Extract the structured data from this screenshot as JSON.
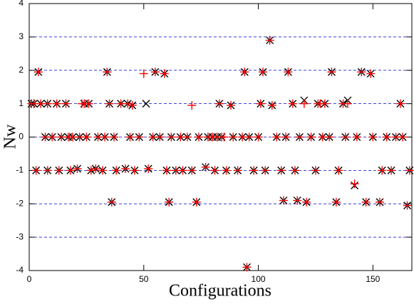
{
  "chart_data": {
    "type": "scatter",
    "xlabel": "Configurations",
    "ylabel": "Nw",
    "xlim": [
      0,
      167
    ],
    "ylim": [
      -4,
      4
    ],
    "xticks": [
      0,
      50,
      100,
      150
    ],
    "yticks": [
      -4,
      -3,
      -2,
      -1,
      0,
      1,
      2,
      3,
      4
    ],
    "grid": true,
    "grid_color": "#0000cc",
    "series": [
      {
        "color": "#000000",
        "marker": "x",
        "x": [
          1,
          2,
          3,
          4,
          5,
          7,
          8,
          8,
          10,
          12,
          13,
          14,
          16,
          17,
          18,
          19,
          21,
          22,
          24,
          25,
          26,
          27,
          29,
          30,
          32,
          33,
          34,
          35,
          36,
          37,
          38,
          40,
          42,
          43,
          44,
          45,
          46,
          48,
          51,
          52,
          54,
          55,
          57,
          59,
          60,
          61,
          62,
          64,
          66,
          67,
          69,
          71,
          73,
          74,
          77,
          78,
          80,
          81,
          82,
          83,
          84,
          86,
          88,
          89,
          91,
          93,
          94,
          95,
          96,
          98,
          100,
          101,
          102,
          103,
          105,
          106,
          108,
          110,
          111,
          112,
          113,
          115,
          116,
          117,
          118,
          120,
          121,
          123,
          125,
          126,
          128,
          129,
          131,
          132,
          134,
          135,
          137,
          138,
          139,
          142,
          143,
          145,
          147,
          149,
          150,
          153,
          154,
          156,
          158,
          160,
          162,
          163,
          165,
          166
        ],
        "values": [
          1,
          1,
          -1,
          1.95,
          1,
          0,
          -1,
          1,
          0,
          1,
          -1,
          0,
          1,
          0,
          -1,
          0,
          -0.95,
          0,
          1,
          0,
          1,
          -1,
          -0.95,
          0,
          -1,
          0,
          1.95,
          1,
          -1.95,
          0,
          -1,
          1,
          -0.95,
          1,
          0,
          0.95,
          -1,
          0,
          1,
          -0.95,
          0,
          1.95,
          0,
          1.9,
          -1,
          -1.95,
          0,
          -1,
          0,
          -1,
          0,
          -1,
          -1.95,
          0,
          -0.9,
          0,
          0,
          -1,
          0,
          1,
          0,
          -1,
          0.95,
          0,
          -1,
          0,
          1.95,
          -3.9,
          0,
          -1,
          0,
          1,
          1.95,
          -1,
          2.9,
          0.95,
          0,
          -1,
          -1.9,
          0,
          1.95,
          1,
          -1,
          -1.9,
          0,
          1.1,
          -1.95,
          0,
          -1,
          1,
          0,
          1,
          0,
          1.95,
          -1.95,
          -1,
          1,
          0,
          1.1,
          -1.45,
          0,
          1.95,
          -1.95,
          1.9,
          0,
          -1.95,
          -1,
          0,
          -1,
          0,
          1,
          0,
          -2.05,
          -1
        ]
      },
      {
        "color": "#ff0000",
        "marker": "+",
        "x": [
          1,
          2,
          3,
          4,
          5,
          7,
          8,
          8,
          10,
          12,
          13,
          14,
          16,
          17,
          18,
          19,
          21,
          22,
          24,
          25,
          26,
          27,
          29,
          30,
          32,
          33,
          34,
          35,
          36,
          37,
          38,
          40,
          42,
          43,
          44,
          45,
          46,
          48,
          52,
          54,
          55,
          57,
          59,
          60,
          61,
          62,
          64,
          66,
          67,
          69,
          71,
          73,
          74,
          77,
          78,
          80,
          81,
          82,
          83,
          84,
          86,
          88,
          89,
          91,
          93,
          94,
          95,
          96,
          98,
          100,
          101,
          102,
          103,
          105,
          106,
          108,
          110,
          111,
          112,
          113,
          115,
          116,
          117,
          118,
          120,
          121,
          123,
          125,
          126,
          128,
          129,
          131,
          132,
          134,
          135,
          137,
          138,
          139,
          142,
          143,
          145,
          147,
          149,
          150,
          153,
          154,
          156,
          158,
          160,
          162,
          163,
          165,
          166,
          23,
          50,
          71,
          85,
          127
        ],
        "values": [
          1,
          1,
          -1,
          1.95,
          1,
          0,
          -1,
          1,
          0,
          1,
          -1,
          0,
          1,
          0,
          -1,
          0,
          -0.95,
          0,
          1,
          0,
          1,
          -1,
          -0.95,
          0,
          -1,
          0,
          1.95,
          1,
          -1.95,
          0,
          -1,
          1,
          -0.95,
          1,
          0,
          0.95,
          -1,
          0,
          -0.95,
          0,
          1.95,
          0,
          1.9,
          -1,
          -1.95,
          0,
          -1,
          0,
          -1,
          0,
          -1,
          -1.95,
          0,
          -0.9,
          0,
          0,
          -1,
          0,
          1,
          0,
          -1,
          0.95,
          0,
          -1,
          0,
          1.95,
          -3.9,
          0,
          -1,
          0,
          1,
          1.95,
          -1,
          2.9,
          0.95,
          0,
          -1,
          -1.9,
          0,
          1.95,
          1,
          -1,
          -1.9,
          0,
          1,
          -1.95,
          0,
          -1,
          1,
          0,
          1,
          0,
          1.95,
          -1.95,
          -1,
          1,
          0,
          1,
          -1.4,
          0,
          1.95,
          -1.95,
          1.9,
          0,
          -1.95,
          -1,
          0,
          -1,
          0,
          1,
          0,
          -2.05,
          -1,
          1,
          1.9,
          0.95,
          0,
          1
        ]
      }
    ]
  }
}
